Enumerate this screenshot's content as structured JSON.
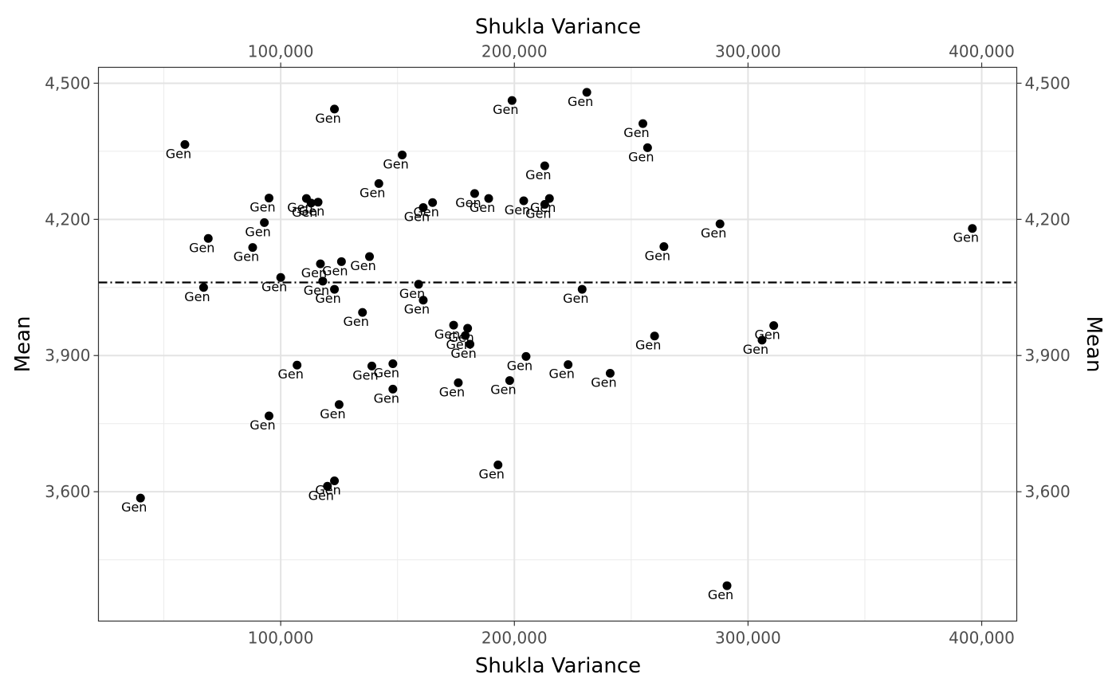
{
  "chart_data": {
    "type": "scatter",
    "title": "",
    "xlabel": "Shukla Variance",
    "ylabel": "Mean",
    "xlim": [
      22000,
      415000
    ],
    "ylim": [
      3315000,
      4535000
    ],
    "x_ticks": [
      100000,
      200000,
      300000,
      400000
    ],
    "x_tick_labels": [
      "100,000",
      "200,000",
      "300,000",
      "400,000"
    ],
    "x_minor": [
      50000,
      150000,
      250000,
      350000
    ],
    "y_ticks": [
      3600,
      3900,
      4200,
      4500
    ],
    "y_tick_labels": [
      "3,600",
      "3,900",
      "4,200",
      "4,500"
    ],
    "y_minor": [
      3450,
      3750,
      4050,
      4350
    ],
    "y_range": [
      3315,
      4535
    ],
    "x_range": [
      22000,
      415000
    ],
    "hline": 4061,
    "hline_style": "dash-dot",
    "point_label": "Gen",
    "points": [
      {
        "x": 40000,
        "y": 3586
      },
      {
        "x": 59000,
        "y": 4365
      },
      {
        "x": 67000,
        "y": 4050
      },
      {
        "x": 69000,
        "y": 4158
      },
      {
        "x": 88000,
        "y": 4138
      },
      {
        "x": 93000,
        "y": 4193
      },
      {
        "x": 95000,
        "y": 4247
      },
      {
        "x": 95000,
        "y": 3767
      },
      {
        "x": 100000,
        "y": 4072
      },
      {
        "x": 107000,
        "y": 3879
      },
      {
        "x": 111000,
        "y": 4246
      },
      {
        "x": 113000,
        "y": 4236
      },
      {
        "x": 116000,
        "y": 4238
      },
      {
        "x": 117000,
        "y": 4102
      },
      {
        "x": 118000,
        "y": 4064
      },
      {
        "x": 120000,
        "y": 3612
      },
      {
        "x": 123000,
        "y": 4443
      },
      {
        "x": 123000,
        "y": 4046
      },
      {
        "x": 123000,
        "y": 3624
      },
      {
        "x": 125000,
        "y": 3792
      },
      {
        "x": 126000,
        "y": 4107
      },
      {
        "x": 135000,
        "y": 3995
      },
      {
        "x": 138000,
        "y": 4118
      },
      {
        "x": 139000,
        "y": 3877
      },
      {
        "x": 142000,
        "y": 4279
      },
      {
        "x": 148000,
        "y": 3882
      },
      {
        "x": 148000,
        "y": 3826
      },
      {
        "x": 152000,
        "y": 4342
      },
      {
        "x": 159000,
        "y": 4057
      },
      {
        "x": 161000,
        "y": 4226
      },
      {
        "x": 161000,
        "y": 4022
      },
      {
        "x": 165000,
        "y": 4237
      },
      {
        "x": 174000,
        "y": 3967
      },
      {
        "x": 176000,
        "y": 3840
      },
      {
        "x": 179000,
        "y": 3944
      },
      {
        "x": 180000,
        "y": 3960
      },
      {
        "x": 181000,
        "y": 3925
      },
      {
        "x": 183000,
        "y": 4257
      },
      {
        "x": 189000,
        "y": 4246
      },
      {
        "x": 193000,
        "y": 3659
      },
      {
        "x": 198000,
        "y": 3845
      },
      {
        "x": 199000,
        "y": 4462
      },
      {
        "x": 204000,
        "y": 4241
      },
      {
        "x": 205000,
        "y": 3898
      },
      {
        "x": 213000,
        "y": 4318
      },
      {
        "x": 213000,
        "y": 4233
      },
      {
        "x": 215000,
        "y": 4246
      },
      {
        "x": 223000,
        "y": 3880
      },
      {
        "x": 229000,
        "y": 4046
      },
      {
        "x": 231000,
        "y": 4480
      },
      {
        "x": 241000,
        "y": 3861
      },
      {
        "x": 255000,
        "y": 4411
      },
      {
        "x": 257000,
        "y": 4358
      },
      {
        "x": 260000,
        "y": 3943
      },
      {
        "x": 264000,
        "y": 4140
      },
      {
        "x": 288000,
        "y": 4190
      },
      {
        "x": 291000,
        "y": 3393
      },
      {
        "x": 306000,
        "y": 3934
      },
      {
        "x": 311000,
        "y": 3966
      },
      {
        "x": 396000,
        "y": 4180
      }
    ]
  }
}
